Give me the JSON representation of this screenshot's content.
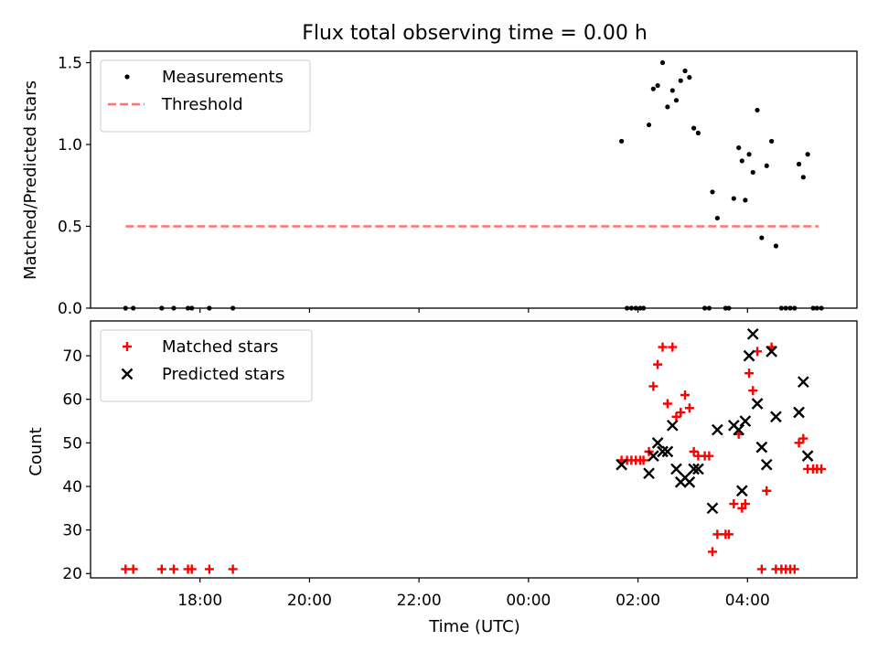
{
  "chart_data": {
    "title": "Flux total observing time = 0.00 h",
    "xlabel": "Time (UTC)",
    "x_units": "hours since 16:00 UTC",
    "xlim": [
      0.0,
      14.0
    ],
    "x_ticks": [
      {
        "x": 2,
        "label": "18:00"
      },
      {
        "x": 4,
        "label": "20:00"
      },
      {
        "x": 6,
        "label": "22:00"
      },
      {
        "x": 8,
        "label": "00:00"
      },
      {
        "x": 10,
        "label": "02:00"
      },
      {
        "x": 12,
        "label": "04:00"
      }
    ],
    "panels": [
      {
        "type": "scatter",
        "ylabel": "Matched/Predicted stars",
        "ylim": [
          0,
          1.57
        ],
        "y_ticks": [
          0.0,
          0.5,
          1.0,
          1.5
        ],
        "y_tick_labels": [
          "0.0",
          "0.5",
          "1.0",
          "1.5"
        ],
        "legend_location": "top-left",
        "series": [
          {
            "name": "Measurements",
            "marker": "dot",
            "color": "#000000",
            "points": [
              [
                0.64,
                0
              ],
              [
                0.78,
                0
              ],
              [
                1.3,
                0
              ],
              [
                1.52,
                0
              ],
              [
                1.78,
                0
              ],
              [
                1.85,
                0
              ],
              [
                2.17,
                0
              ],
              [
                2.6,
                0
              ],
              [
                9.7,
                1.02
              ],
              [
                9.8,
                0
              ],
              [
                9.88,
                0
              ],
              [
                9.96,
                0
              ],
              [
                10.04,
                0
              ],
              [
                10.1,
                0
              ],
              [
                10.2,
                1.12
              ],
              [
                10.28,
                1.34
              ],
              [
                10.36,
                1.36
              ],
              [
                10.45,
                1.5
              ],
              [
                10.54,
                1.23
              ],
              [
                10.63,
                1.33
              ],
              [
                10.7,
                1.27
              ],
              [
                10.78,
                1.39
              ],
              [
                10.86,
                1.45
              ],
              [
                10.94,
                1.41
              ],
              [
                11.02,
                1.1
              ],
              [
                11.1,
                1.07
              ],
              [
                11.22,
                0
              ],
              [
                11.3,
                0
              ],
              [
                11.36,
                0.71
              ],
              [
                11.45,
                0.55
              ],
              [
                11.6,
                0
              ],
              [
                11.66,
                0
              ],
              [
                11.75,
                0.67
              ],
              [
                11.84,
                0.98
              ],
              [
                11.9,
                0.9
              ],
              [
                11.96,
                0.66
              ],
              [
                12.03,
                0.94
              ],
              [
                12.1,
                0.83
              ],
              [
                12.18,
                1.21
              ],
              [
                12.26,
                0.43
              ],
              [
                12.35,
                0.87
              ],
              [
                12.44,
                1.02
              ],
              [
                12.52,
                0.38
              ],
              [
                12.62,
                0
              ],
              [
                12.7,
                0
              ],
              [
                12.78,
                0
              ],
              [
                12.86,
                0
              ],
              [
                12.94,
                0.88
              ],
              [
                13.02,
                0.8
              ],
              [
                13.1,
                0.94
              ],
              [
                13.2,
                0
              ],
              [
                13.27,
                0
              ],
              [
                13.35,
                0
              ]
            ]
          },
          {
            "name": "Threshold",
            "style": "dashed",
            "color": "#ff7373",
            "x": [
              0.64,
              13.3
            ],
            "y": [
              0.5,
              0.5
            ]
          }
        ]
      },
      {
        "type": "scatter",
        "ylabel": "Count",
        "ylim": [
          19,
          78
        ],
        "y_ticks": [
          20,
          30,
          40,
          50,
          60,
          70
        ],
        "y_tick_labels": [
          "20",
          "30",
          "40",
          "50",
          "60",
          "70"
        ],
        "legend_location": "top-left",
        "series": [
          {
            "name": "Matched stars",
            "marker": "plus",
            "color": "#ff0000",
            "points": [
              [
                0.64,
                21
              ],
              [
                0.78,
                21
              ],
              [
                1.3,
                21
              ],
              [
                1.52,
                21
              ],
              [
                1.78,
                21
              ],
              [
                1.85,
                21
              ],
              [
                2.17,
                21
              ],
              [
                2.6,
                21
              ],
              [
                9.7,
                46
              ],
              [
                9.8,
                46
              ],
              [
                9.88,
                46
              ],
              [
                9.96,
                46
              ],
              [
                10.04,
                46
              ],
              [
                10.1,
                46
              ],
              [
                10.2,
                48
              ],
              [
                10.28,
                63
              ],
              [
                10.36,
                68
              ],
              [
                10.45,
                72
              ],
              [
                10.54,
                59
              ],
              [
                10.63,
                72
              ],
              [
                10.7,
                56
              ],
              [
                10.78,
                57
              ],
              [
                10.86,
                61
              ],
              [
                10.94,
                58
              ],
              [
                11.02,
                48
              ],
              [
                11.1,
                47
              ],
              [
                11.22,
                47
              ],
              [
                11.3,
                47
              ],
              [
                11.36,
                25
              ],
              [
                11.45,
                29
              ],
              [
                11.6,
                29
              ],
              [
                11.66,
                29
              ],
              [
                11.75,
                36
              ],
              [
                11.84,
                52
              ],
              [
                11.9,
                35
              ],
              [
                11.96,
                36
              ],
              [
                12.03,
                66
              ],
              [
                12.1,
                62
              ],
              [
                12.18,
                71
              ],
              [
                12.26,
                21
              ],
              [
                12.35,
                39
              ],
              [
                12.44,
                72
              ],
              [
                12.52,
                21
              ],
              [
                12.62,
                21
              ],
              [
                12.7,
                21
              ],
              [
                12.78,
                21
              ],
              [
                12.86,
                21
              ],
              [
                12.94,
                50
              ],
              [
                13.02,
                51
              ],
              [
                13.1,
                44
              ],
              [
                13.2,
                44
              ],
              [
                13.27,
                44
              ],
              [
                13.35,
                44
              ]
            ]
          },
          {
            "name": "Predicted stars",
            "marker": "x",
            "color": "#000000",
            "points": [
              [
                9.7,
                45
              ],
              [
                10.2,
                43
              ],
              [
                10.28,
                47
              ],
              [
                10.36,
                50
              ],
              [
                10.45,
                48
              ],
              [
                10.54,
                48
              ],
              [
                10.63,
                54
              ],
              [
                10.7,
                44
              ],
              [
                10.78,
                41
              ],
              [
                10.86,
                42
              ],
              [
                10.94,
                41
              ],
              [
                11.02,
                44
              ],
              [
                11.1,
                44
              ],
              [
                11.36,
                35
              ],
              [
                11.45,
                53
              ],
              [
                11.75,
                54
              ],
              [
                11.84,
                53
              ],
              [
                11.9,
                39
              ],
              [
                11.96,
                55
              ],
              [
                12.03,
                70
              ],
              [
                12.1,
                75
              ],
              [
                12.18,
                59
              ],
              [
                12.26,
                49
              ],
              [
                12.35,
                45
              ],
              [
                12.44,
                71
              ],
              [
                12.52,
                56
              ],
              [
                12.94,
                57
              ],
              [
                13.02,
                64
              ],
              [
                13.1,
                47
              ]
            ]
          }
        ]
      }
    ]
  }
}
